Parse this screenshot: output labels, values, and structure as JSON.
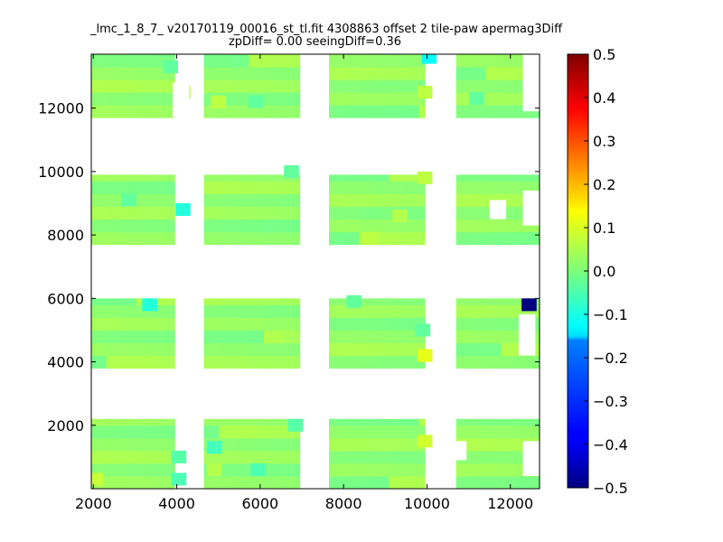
{
  "chart_data": {
    "type": "heatmap",
    "title": [
      "_lmc_1_8_7_ v20170119_00016_st_tl.fit 4308863 offset 2 tile-paw apermag3Diff",
      "zpDiff= 0.00 seeingDiff=0.36"
    ],
    "xlabel": "",
    "ylabel": "",
    "xlim": [
      1950,
      12700
    ],
    "ylim": [
      0,
      13700
    ],
    "xticks": [
      2000,
      4000,
      6000,
      8000,
      10000,
      12000
    ],
    "yticks": [
      2000,
      4000,
      6000,
      8000,
      10000,
      12000
    ],
    "colorbar": {
      "range": [
        -0.5,
        0.5
      ],
      "ticks": [
        "0.5",
        "0.4",
        "0.3",
        "0.2",
        "0.1",
        "0.0",
        "−0.1",
        "−0.2",
        "−0.3",
        "−0.4",
        "−0.5"
      ],
      "colormap": "jet"
    },
    "cell_size": [
      360,
      400
    ],
    "background_value": 0.02,
    "panel_columns_x": [
      [
        1950,
        3950
      ],
      [
        4650,
        6950
      ],
      [
        7650,
        9950
      ],
      [
        10700,
        12700
      ]
    ],
    "panel_rows_y": [
      [
        0,
        2200
      ],
      [
        3800,
        6000
      ],
      [
        7700,
        9900
      ],
      [
        11700,
        13700
      ]
    ],
    "cells": [
      {
        "x": 10050,
        "y": 13600,
        "v": -0.12
      },
      {
        "x": 12450,
        "y": 5800,
        "v": -0.5
      },
      {
        "x": 3350,
        "y": 5800,
        "v": -0.09
      },
      {
        "x": 4150,
        "y": 8800,
        "v": -0.09
      },
      {
        "x": 9950,
        "y": 4200,
        "v": 0.1
      },
      {
        "x": 9950,
        "y": 1500,
        "v": 0.08
      },
      {
        "x": 9950,
        "y": 9800,
        "v": 0.06
      },
      {
        "x": 9950,
        "y": 12500,
        "v": 0.06
      },
      {
        "x": 4150,
        "y": 12500,
        "v": 0.06
      },
      {
        "x": 5000,
        "y": 12200,
        "v": 0.06
      },
      {
        "x": 2050,
        "y": 300,
        "v": 0.07
      },
      {
        "x": 4900,
        "y": 600,
        "v": 0.05
      },
      {
        "x": 8650,
        "y": 7900,
        "v": 0.06
      },
      {
        "x": 9350,
        "y": 8600,
        "v": 0.05
      },
      {
        "x": 6750,
        "y": 4800,
        "v": 0.04
      },
      {
        "x": 4050,
        "y": 300,
        "v": -0.05
      },
      {
        "x": 4050,
        "y": 1000,
        "v": -0.04
      },
      {
        "x": 4900,
        "y": 1300,
        "v": -0.06
      },
      {
        "x": 6850,
        "y": 2000,
        "v": -0.04
      },
      {
        "x": 5950,
        "y": 600,
        "v": -0.05
      },
      {
        "x": 8250,
        "y": 5900,
        "v": -0.03
      },
      {
        "x": 2850,
        "y": 9100,
        "v": -0.03
      },
      {
        "x": 6750,
        "y": 10000,
        "v": -0.03
      },
      {
        "x": 3850,
        "y": 13300,
        "v": -0.03
      },
      {
        "x": 5900,
        "y": 12200,
        "v": -0.03
      },
      {
        "x": 11200,
        "y": 12300,
        "v": -0.03
      },
      {
        "x": 9900,
        "y": 5000,
        "v": -0.03
      }
    ]
  }
}
